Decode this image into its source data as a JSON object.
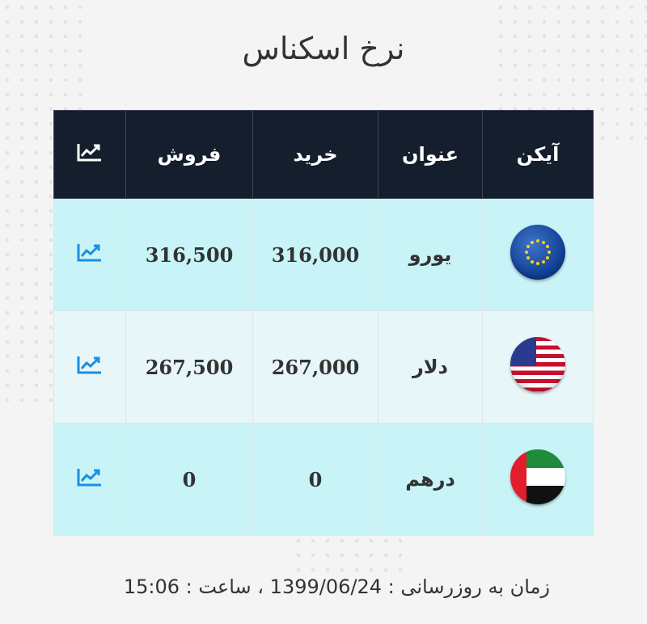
{
  "title": "نرخ اسکناس",
  "table": {
    "headers": {
      "icon": "آیکن",
      "name": "عنوان",
      "buy": "خرید",
      "sell": "فروش",
      "chart_icon": "chart-line-icon"
    },
    "rows": [
      {
        "flag": "eu-flag-icon",
        "name": "یورو",
        "buy": "316,000",
        "sell": "316,500"
      },
      {
        "flag": "us-flag-icon",
        "name": "دلار",
        "buy": "267,000",
        "sell": "267,500"
      },
      {
        "flag": "ae-flag-icon",
        "name": "درهم",
        "buy": "0",
        "sell": "0"
      }
    ]
  },
  "footer": {
    "text": "زمان به روزرسانی : 1399/06/24 ، ساعت : 15:06"
  },
  "colors": {
    "header_bg": "#141e2d",
    "row_odd": "#c9f4f7",
    "row_even": "#e7f6f8",
    "chart_icon": "#1a8fe3"
  }
}
